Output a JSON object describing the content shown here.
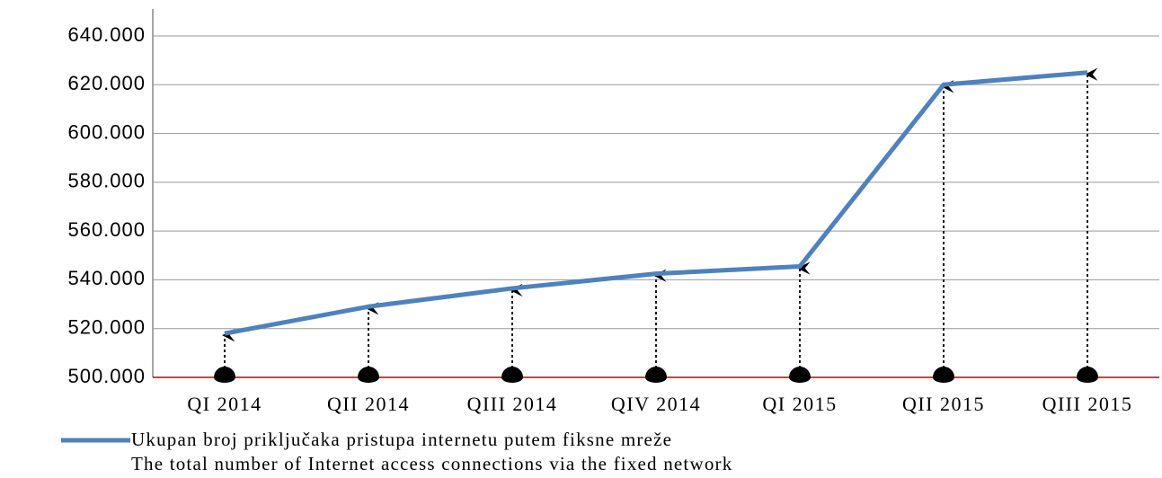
{
  "chart_data": {
    "type": "line",
    "categories": [
      "QI 2014",
      "QII 2014",
      "QIII 2014",
      "QIV 2014",
      "QI 2015",
      "QII 2015",
      "QIII 2015"
    ],
    "series": [
      {
        "name": "Ukupan broj priključaka pristupa internetu putem fiksne mreže",
        "name_en": "The total number of Internet access connections via the fixed network",
        "color": "#4f81bd",
        "values": [
          518000,
          529000,
          536500,
          542500,
          545500,
          620000,
          625000
        ]
      }
    ],
    "ylim": [
      500000,
      640000
    ],
    "yticks": [
      {
        "value": 500000,
        "label": "500.000"
      },
      {
        "value": 520000,
        "label": "520.000"
      },
      {
        "value": 540000,
        "label": "540.000"
      },
      {
        "value": 560000,
        "label": "560.000"
      },
      {
        "value": 580000,
        "label": "580.000"
      },
      {
        "value": 600000,
        "label": "600.000"
      },
      {
        "value": 620000,
        "label": "620.000"
      },
      {
        "value": 640000,
        "label": "640.000"
      }
    ],
    "grid": true
  }
}
